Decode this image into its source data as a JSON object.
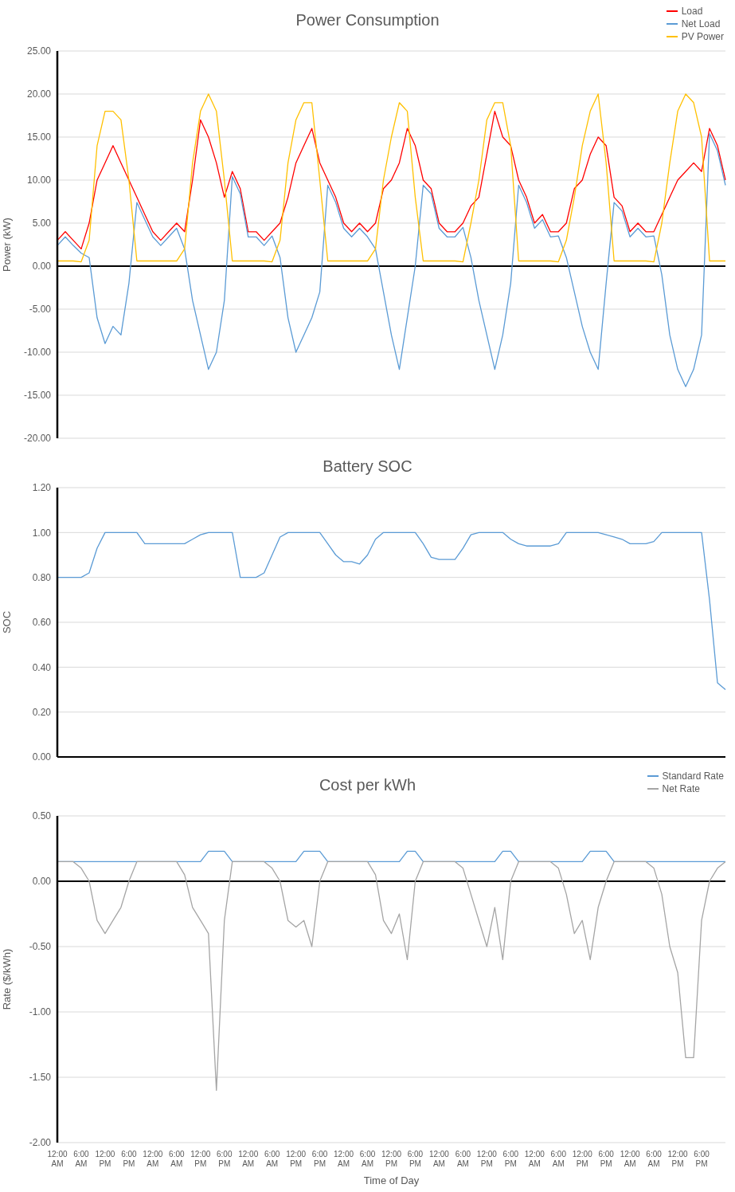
{
  "chart_data": [
    {
      "type": "line",
      "title": "Power Consumption",
      "ylabel": "Power (kW)",
      "ylim": [
        -20,
        25
      ],
      "categories": [
        null,
        null,
        null,
        null,
        null,
        null,
        null,
        null,
        null,
        null,
        null,
        null,
        null,
        null,
        null,
        null,
        null,
        null,
        null,
        null,
        null,
        null,
        null,
        null,
        null,
        null,
        null,
        null,
        null,
        null,
        null,
        null,
        null,
        null,
        null,
        null,
        null,
        null,
        null,
        null,
        null,
        null,
        null,
        null,
        null,
        null,
        null,
        null,
        null,
        null,
        null,
        null,
        null,
        null,
        null,
        null,
        null,
        null,
        null,
        null,
        null,
        null,
        null,
        null,
        null,
        null,
        null,
        null,
        null,
        null,
        null,
        null,
        null,
        null,
        null,
        null,
        null,
        null,
        null,
        null,
        null,
        null,
        null,
        null,
        null
      ],
      "yticks": [
        {
          "value": -20,
          "label": "-20.00"
        },
        {
          "value": -15,
          "label": "-15.00"
        },
        {
          "value": -10,
          "label": "-10.00"
        },
        {
          "value": -5,
          "label": "-5.00"
        },
        {
          "value": 0,
          "label": "0.00"
        },
        {
          "value": 5,
          "label": "5.00"
        },
        {
          "value": 10,
          "label": "10.00"
        },
        {
          "value": 15,
          "label": "15.00"
        },
        {
          "value": 20,
          "label": "20.00"
        },
        {
          "value": 25,
          "label": "25.00"
        }
      ],
      "tick_labels": "y",
      "grid": "y",
      "legend": "top right",
      "series": [
        {
          "name": "Load",
          "color": "#ff0000",
          "values": [
            3,
            4,
            3,
            2,
            5,
            10,
            12,
            14,
            12,
            10,
            8,
            6,
            4,
            3,
            4,
            5,
            4,
            10,
            17,
            15,
            12,
            8,
            11,
            9,
            4,
            4,
            3,
            4,
            5,
            8,
            12,
            14,
            16,
            12,
            10,
            8,
            5,
            4,
            5,
            4,
            5,
            9,
            10,
            12,
            16,
            14,
            10,
            9,
            5,
            4,
            4,
            5,
            7,
            8,
            13,
            18,
            15,
            14,
            10,
            8,
            5,
            6,
            4,
            4,
            5,
            9,
            10,
            13,
            15,
            14,
            8,
            7,
            4,
            5,
            4,
            4,
            6,
            8,
            10,
            11,
            12,
            11,
            16,
            14,
            10
          ]
        },
        {
          "name": "Net Load",
          "color": "#5b9bd5",
          "values": [
            2.4,
            3.4,
            2.4,
            1.5,
            1,
            -6,
            -9,
            -7,
            -8,
            -2,
            7.4,
            5.4,
            3.4,
            2.4,
            3.4,
            4.4,
            2,
            -4,
            -8,
            -12,
            -10,
            -4,
            10.4,
            8.4,
            3.4,
            3.4,
            2.4,
            3.5,
            1,
            -6,
            -10,
            -8,
            -6,
            -3,
            9.4,
            7.4,
            4.4,
            3.4,
            4.4,
            3.4,
            2,
            -3,
            -8,
            -12,
            -6,
            0,
            9.4,
            8.4,
            4.4,
            3.4,
            3.4,
            4.5,
            1,
            -4,
            -8,
            -12,
            -8,
            -2,
            9.4,
            7.4,
            4.4,
            5.4,
            3.4,
            3.5,
            1,
            -3,
            -7,
            -10,
            -12,
            -2,
            7.4,
            6.4,
            3.4,
            4.4,
            3.4,
            3.5,
            -1,
            -8,
            -12,
            -14,
            -12,
            -8,
            15.4,
            13.4,
            9.4
          ]
        },
        {
          "name": "PV Power",
          "color": "#ffc000",
          "values": [
            0.6,
            0.6,
            0.6,
            0.5,
            3,
            14,
            18,
            18,
            17,
            10,
            0.6,
            0.6,
            0.6,
            0.6,
            0.6,
            0.6,
            2,
            12,
            18,
            20,
            18,
            10,
            0.6,
            0.6,
            0.6,
            0.6,
            0.6,
            0.5,
            3,
            12,
            17,
            19,
            19,
            10,
            0.6,
            0.6,
            0.6,
            0.6,
            0.6,
            0.6,
            2,
            10,
            15,
            19,
            18,
            8,
            0.6,
            0.6,
            0.6,
            0.6,
            0.6,
            0.5,
            5,
            10,
            17,
            19,
            19,
            14,
            0.6,
            0.6,
            0.6,
            0.6,
            0.6,
            0.5,
            3,
            8,
            14,
            18,
            20,
            12,
            0.6,
            0.6,
            0.6,
            0.6,
            0.6,
            0.5,
            5,
            12,
            18,
            20,
            19,
            15,
            0.6,
            0.6,
            0.6
          ]
        }
      ]
    },
    {
      "type": "line",
      "title": "Battery SOC",
      "ylabel": "SOC",
      "ylim": [
        0,
        1.2
      ],
      "categories": [
        null,
        null,
        null,
        null,
        null,
        null,
        null,
        null,
        null,
        null,
        null,
        null,
        null,
        null,
        null,
        null,
        null,
        null,
        null,
        null,
        null,
        null,
        null,
        null,
        null,
        null,
        null,
        null,
        null,
        null,
        null,
        null,
        null,
        null,
        null,
        null,
        null,
        null,
        null,
        null,
        null,
        null,
        null,
        null,
        null,
        null,
        null,
        null,
        null,
        null,
        null,
        null,
        null,
        null,
        null,
        null,
        null,
        null,
        null,
        null,
        null,
        null,
        null,
        null,
        null,
        null,
        null,
        null,
        null,
        null,
        null,
        null,
        null,
        null,
        null,
        null,
        null,
        null,
        null,
        null,
        null,
        null,
        null,
        null,
        null
      ],
      "yticks": [
        {
          "value": 0,
          "label": "0.00"
        },
        {
          "value": 0.2,
          "label": "0.20"
        },
        {
          "value": 0.4,
          "label": "0.40"
        },
        {
          "value": 0.6,
          "label": "0.60"
        },
        {
          "value": 0.8,
          "label": "0.80"
        },
        {
          "value": 1,
          "label": "1.00"
        },
        {
          "value": 1.2,
          "label": "1.20"
        }
      ],
      "tick_labels": "y",
      "grid": "y",
      "series": [
        {
          "color": "#5b9bd5",
          "values": [
            0.8,
            0.8,
            0.8,
            0.8,
            0.82,
            0.93,
            1,
            1,
            1,
            1,
            1,
            0.95,
            0.95,
            0.95,
            0.95,
            0.95,
            0.95,
            0.97,
            0.99,
            1,
            1,
            1,
            1,
            0.8,
            0.8,
            0.8,
            0.82,
            0.9,
            0.98,
            1,
            1,
            1,
            1,
            1,
            0.95,
            0.9,
            0.87,
            0.87,
            0.86,
            0.9,
            0.97,
            1,
            1,
            1,
            1,
            1,
            0.95,
            0.89,
            0.88,
            0.88,
            0.88,
            0.93,
            0.99,
            1,
            1,
            1,
            1,
            0.97,
            0.95,
            0.94,
            0.94,
            0.94,
            0.94,
            0.95,
            1,
            1,
            1,
            1,
            1,
            0.99,
            0.98,
            0.97,
            0.95,
            0.95,
            0.95,
            0.96,
            1,
            1,
            1,
            1,
            1,
            1,
            0.7,
            0.33,
            0.3
          ]
        }
      ]
    },
    {
      "type": "line",
      "title": "Cost per kWh",
      "ylabel": "Rate ($/kWh)",
      "xlabel": "Time of Day",
      "ylim": [
        -2,
        0.5
      ],
      "categories": [
        "12:00 AM",
        null,
        null,
        "6:00 AM",
        null,
        null,
        "12:00 PM",
        null,
        null,
        "6:00 PM",
        null,
        null,
        "12:00 AM",
        null,
        null,
        "6:00 AM",
        null,
        null,
        "12:00 PM",
        null,
        null,
        "6:00 PM",
        null,
        null,
        "12:00 AM",
        null,
        null,
        "6:00 AM",
        null,
        null,
        "12:00 PM",
        null,
        null,
        "6:00 PM",
        null,
        null,
        "12:00 AM",
        null,
        null,
        "6:00 AM",
        null,
        null,
        "12:00 PM",
        null,
        null,
        "6:00 PM",
        null,
        null,
        "12:00 AM",
        null,
        null,
        "6:00 AM",
        null,
        null,
        "12:00 PM",
        null,
        null,
        "6:00 PM",
        null,
        null,
        "12:00 AM",
        null,
        null,
        "6:00 AM",
        null,
        null,
        "12:00 PM",
        null,
        null,
        "6:00 PM",
        null,
        null,
        "12:00 AM",
        null,
        null,
        "6:00 AM",
        null,
        null,
        "12:00 PM",
        null,
        null,
        "6:00 PM",
        null,
        null,
        null
      ],
      "yticks": [
        {
          "value": -2,
          "label": "-2.00"
        },
        {
          "value": -1.5,
          "label": "-1.50"
        },
        {
          "value": -1,
          "label": "-1.00"
        },
        {
          "value": -0.5,
          "label": "-0.50"
        },
        {
          "value": 0,
          "label": "0.00"
        },
        {
          "value": 0.5,
          "label": "0.50"
        }
      ],
      "grid": "y",
      "legend": "top right",
      "series": [
        {
          "name": "Standard Rate",
          "color": "#5b9bd5",
          "values": [
            0.15,
            0.15,
            0.15,
            0.15,
            0.15,
            0.15,
            0.15,
            0.15,
            0.15,
            0.15,
            0.15,
            0.15,
            0.15,
            0.15,
            0.15,
            0.15,
            0.15,
            0.15,
            0.15,
            0.23,
            0.23,
            0.23,
            0.15,
            0.15,
            0.15,
            0.15,
            0.15,
            0.15,
            0.15,
            0.15,
            0.15,
            0.23,
            0.23,
            0.23,
            0.15,
            0.15,
            0.15,
            0.15,
            0.15,
            0.15,
            0.15,
            0.15,
            0.15,
            0.15,
            0.23,
            0.23,
            0.15,
            0.15,
            0.15,
            0.15,
            0.15,
            0.15,
            0.15,
            0.15,
            0.15,
            0.15,
            0.23,
            0.23,
            0.15,
            0.15,
            0.15,
            0.15,
            0.15,
            0.15,
            0.15,
            0.15,
            0.15,
            0.23,
            0.23,
            0.23,
            0.15,
            0.15,
            0.15,
            0.15,
            0.15,
            0.15,
            0.15,
            0.15,
            0.15,
            0.15,
            0.15,
            0.15,
            0.15,
            0.15,
            0.15
          ]
        },
        {
          "name": "Net Rate",
          "color": "#a5a5a5",
          "values": [
            0.15,
            0.15,
            0.15,
            0.1,
            0,
            -0.3,
            -0.4,
            -0.3,
            -0.2,
            0,
            0.15,
            0.15,
            0.15,
            0.15,
            0.15,
            0.15,
            0.05,
            -0.2,
            -0.3,
            -0.4,
            -1.6,
            -0.3,
            0.15,
            0.15,
            0.15,
            0.15,
            0.15,
            0.1,
            0,
            -0.3,
            -0.35,
            -0.3,
            -0.5,
            0,
            0.15,
            0.15,
            0.15,
            0.15,
            0.15,
            0.15,
            0.05,
            -0.3,
            -0.4,
            -0.25,
            -0.6,
            0,
            0.15,
            0.15,
            0.15,
            0.15,
            0.15,
            0.1,
            -0.1,
            -0.3,
            -0.5,
            -0.2,
            -0.6,
            0,
            0.15,
            0.15,
            0.15,
            0.15,
            0.15,
            0.1,
            -0.1,
            -0.4,
            -0.3,
            -0.6,
            -0.2,
            0,
            0.15,
            0.15,
            0.15,
            0.15,
            0.15,
            0.1,
            -0.1,
            -0.5,
            -0.7,
            -1.35,
            -1.35,
            -0.3,
            0,
            0.1,
            0.15
          ]
        }
      ]
    }
  ]
}
